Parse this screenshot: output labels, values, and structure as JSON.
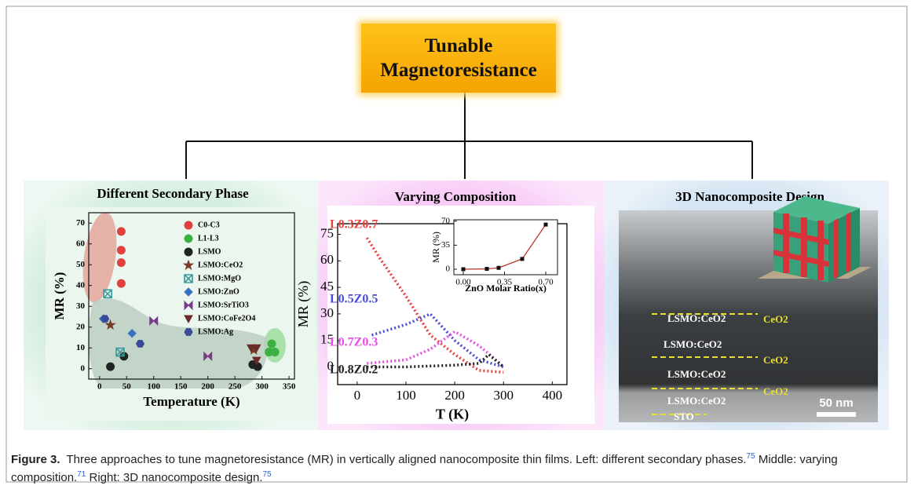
{
  "header": {
    "title": "Tunable Magnetoresistance"
  },
  "panels": [
    {
      "title": "Different Secondary Phase",
      "chart": {
        "type": "scatter",
        "x_label": "Temperature (K)",
        "y_label": "MR (%)",
        "xlim": [
          -20,
          360
        ],
        "ylim": [
          -5,
          75
        ],
        "xticks": [
          0,
          50,
          100,
          150,
          200,
          250,
          300,
          350
        ],
        "yticks": [
          0,
          10,
          20,
          30,
          40,
          50,
          60,
          70
        ],
        "series": [
          {
            "name": "C0-C3",
            "color": "#e04040",
            "marker": "circle",
            "x": [
              40,
              40,
              40,
              40
            ],
            "values": [
              41,
              51,
              57,
              66
            ]
          },
          {
            "name": "L1-L3",
            "color": "#3cb043",
            "marker": "circle",
            "x": [
              318,
              313,
              324
            ],
            "values": [
              12,
              8,
              8
            ]
          },
          {
            "name": "LSMO",
            "color": "#222222",
            "marker": "circle",
            "x": [
              20,
              45,
              283,
              292
            ],
            "values": [
              1,
              6,
              2,
              1
            ]
          },
          {
            "name": "LSMO:CeO2",
            "color": "#7a3a2a",
            "marker": "star",
            "x": [
              20,
              285
            ],
            "values": [
              21,
              9
            ]
          },
          {
            "name": "LSMO:MgO",
            "color": "#3a9a9a",
            "marker": "squarex",
            "x": [
              15,
              38
            ],
            "values": [
              36,
              8
            ]
          },
          {
            "name": "LSMO:ZnO",
            "color": "#3a70c0",
            "marker": "diamond",
            "x": [
              7,
              60
            ],
            "values": [
              24,
              17
            ]
          },
          {
            "name": "LSMO:SrTiO3",
            "color": "#7a3a8a",
            "marker": "bowtie",
            "x": [
              100,
              200
            ],
            "values": [
              23,
              6
            ]
          },
          {
            "name": "LSMO:CoFe2O4",
            "color": "#6a2a2a",
            "marker": "tridown",
            "x": [
              280,
              290,
              290
            ],
            "values": [
              10,
              10,
              4
            ]
          },
          {
            "name": "LSMO:Ag",
            "color": "#3a4a9a",
            "marker": "hexagon",
            "x": [
              10,
              75
            ],
            "values": [
              24,
              12
            ]
          }
        ]
      }
    },
    {
      "title": "Varying Composition",
      "chart": {
        "type": "line",
        "x_label": "T (K)",
        "y_label": "MR (%)",
        "xlim": [
          -40,
          430
        ],
        "ylim": [
          -10,
          81
        ],
        "xticks": [
          0,
          100,
          200,
          300,
          400
        ],
        "yticks": [
          0,
          15,
          30,
          45,
          60,
          75
        ],
        "series": [
          {
            "name": "L0.3Z0.7",
            "color": "#e8413d",
            "x": [
              20,
              50,
              100,
              150,
              200,
              250,
              300
            ],
            "values": [
              73,
              60,
              40,
              18,
              7,
              -2,
              -3
            ]
          },
          {
            "name": "L0.5Z0.5",
            "color": "#4b4bd6",
            "x": [
              30,
              100,
              150,
              200,
              250,
              300
            ],
            "values": [
              18,
              24,
              30,
              15,
              4,
              0
            ]
          },
          {
            "name": "L0.7Z0.3",
            "color": "#e64fe6",
            "x": [
              20,
              100,
              150,
              200,
              250,
              280,
              300
            ],
            "values": [
              2,
              4,
              10,
              20,
              12,
              5,
              0
            ]
          },
          {
            "name": "L0.8Z0.2",
            "color": "#222222",
            "x": [
              20,
              100,
              200,
              250,
              270,
              300
            ],
            "values": [
              0,
              0,
              1,
              2,
              7,
              0
            ]
          }
        ],
        "inset": {
          "type": "line",
          "x_label": "ZnO Molar Ratio(x)",
          "y_label": "MR (%)",
          "xlim": [
            -0.08,
            0.8
          ],
          "ylim": [
            -8,
            72
          ],
          "xticks": [
            {
              "value": 0,
              "label": "0.00"
            },
            {
              "value": 0.35,
              "label": "0.35"
            },
            {
              "value": 0.7,
              "label": "0.70"
            }
          ],
          "yticks": [
            0,
            35,
            70
          ],
          "x": [
            0,
            0.2,
            0.3,
            0.5,
            0.7
          ],
          "values": [
            0,
            0.5,
            2,
            15,
            65
          ],
          "color": "#c0392b"
        }
      }
    },
    {
      "title": "3D Nanocomposite Design",
      "image": {
        "layer_labels": [
          "LSMO:CeO2",
          "LSMO:CeO2",
          "LSMO:CeO2",
          "LSMO:CeO2"
        ],
        "interface_labels": [
          "CeO2",
          "CeO2",
          "CeO2"
        ],
        "substrate_label": "STO",
        "scale_label": "50 nm"
      }
    }
  ],
  "caption": {
    "label": "Figure 3.",
    "segments": [
      {
        "text": "Three approaches to tune magnetoresistance (MR) in vertically aligned nanocomposite thin films. Left: different secondary phases."
      },
      {
        "ref": "75"
      },
      {
        "text": " Middle: varying composition."
      },
      {
        "ref": "71"
      },
      {
        "text": " Right: 3D nanocomposite design."
      },
      {
        "ref": "75"
      }
    ]
  }
}
